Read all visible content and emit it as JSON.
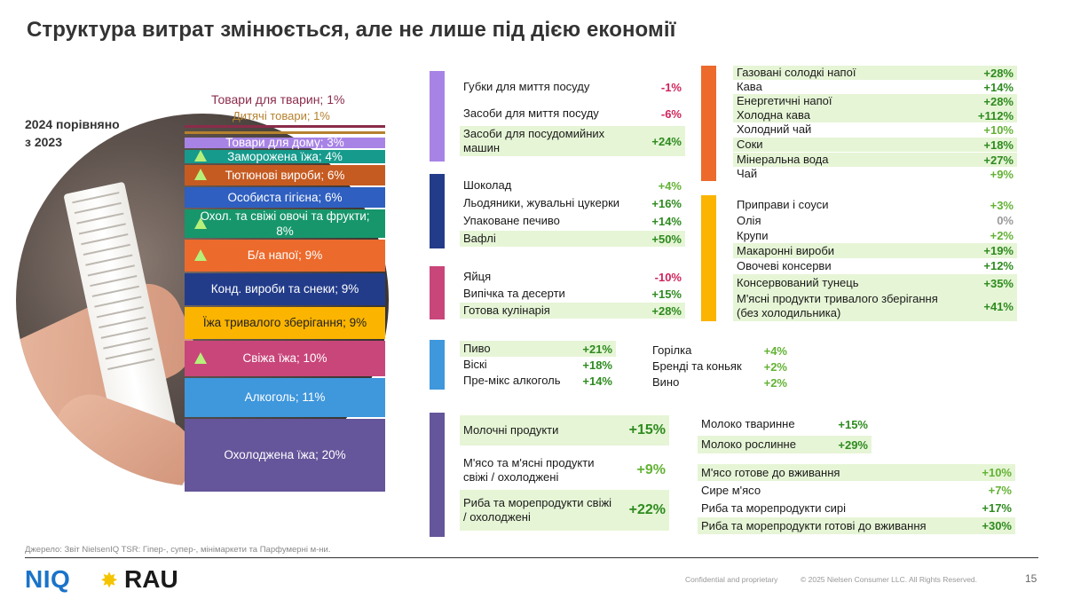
{
  "title": "Структура витрат змінюється, але не лише під дією економії",
  "comparison_note": [
    "2024 порівняно",
    "з 2023"
  ],
  "chart_data": {
    "type": "stacked_bar",
    "title": "Структура витрат змінюється, але не лише під дією економії",
    "unit": "% share of spending",
    "segments": [
      {
        "label": "Товари для тварин; 1%",
        "value": 1,
        "color": "#8b2c4a",
        "trend_up": false
      },
      {
        "label": "Дитячі товари; 1%",
        "value": 1,
        "color": "#b5812e",
        "trend_up": false
      },
      {
        "label": "Товари для дому; 3%",
        "value": 3,
        "color": "#a883e6",
        "trend_up": false
      },
      {
        "label": "Заморожена їжа; 4%",
        "value": 4,
        "color": "#159a8c",
        "trend_up": true
      },
      {
        "label": "Тютюнові вироби; 6%",
        "value": 6,
        "color": "#c65b21",
        "trend_up": true
      },
      {
        "label": "Особиста гігієна; 6%",
        "value": 6,
        "color": "#2f5fc0",
        "trend_up": false
      },
      {
        "label": "Охол. та свіжі овочі та фрукти; 8%",
        "value": 8,
        "color": "#17966b",
        "trend_up": true
      },
      {
        "label": "Б/а напої; 9%",
        "value": 9,
        "color": "#ec6a2c",
        "trend_up": true
      },
      {
        "label": "Конд. вироби та снеки; 9%",
        "value": 9,
        "color": "#233c8a",
        "trend_up": false
      },
      {
        "label": "Їжа тривалого зберігання; 9%",
        "value": 9,
        "color": "#fbb400",
        "trend_up": false
      },
      {
        "label": "Свіжа їжа; 10%",
        "value": 10,
        "color": "#c8467a",
        "trend_up": true
      },
      {
        "label": "Алкоголь; 11%",
        "value": 11,
        "color": "#3f97dc",
        "trend_up": false
      },
      {
        "label": "Охолоджена їжа; 20%",
        "value": 20,
        "color": "#65559a",
        "trend_up": false
      }
    ]
  },
  "groups": {
    "household": {
      "color": "#a883e6",
      "items": [
        {
          "label": "Губки для миття посуду",
          "value": "-1%",
          "tone": "neg",
          "hl": false
        },
        {
          "label": "Засоби для миття посуду",
          "value": "-6%",
          "tone": "neg",
          "hl": false
        },
        {
          "label": "Засоби для посудомийних машин",
          "value": "+24%",
          "tone": "pos-strong",
          "hl": true
        }
      ]
    },
    "confectionery": {
      "color": "#233c8a",
      "items": [
        {
          "label": "Шоколад",
          "value": "+4%",
          "tone": "pos",
          "hl": false
        },
        {
          "label": "Льодяники, жувальні цукерки",
          "value": "+16%",
          "tone": "pos-strong",
          "hl": false
        },
        {
          "label": "Упаковане печиво",
          "value": "+14%",
          "tone": "pos-strong",
          "hl": false
        },
        {
          "label": "Вафлі",
          "value": "+50%",
          "tone": "pos-strong",
          "hl": true
        }
      ]
    },
    "fresh": {
      "color": "#c8467a",
      "items": [
        {
          "label": "Яйця",
          "value": "-10%",
          "tone": "neg",
          "hl": false
        },
        {
          "label": "Випічка та десерти",
          "value": "+15%",
          "tone": "pos-strong",
          "hl": false
        },
        {
          "label": "Готова кулінарія",
          "value": "+28%",
          "tone": "pos-strong",
          "hl": true
        }
      ]
    },
    "alcohol_left": {
      "color": "#3f97dc",
      "items": [
        {
          "label": "Пиво",
          "value": "+21%",
          "tone": "pos-strong",
          "hl": true
        },
        {
          "label": "Віскі",
          "value": "+18%",
          "tone": "pos-strong",
          "hl": false
        },
        {
          "label": "Пре-мікс алкоголь",
          "value": "+14%",
          "tone": "pos-strong",
          "hl": false
        }
      ]
    },
    "alcohol_right": {
      "items": [
        {
          "label": "Горілка",
          "value": "+4%",
          "tone": "pos",
          "hl": false
        },
        {
          "label": "Бренді та коньяк",
          "value": "+2%",
          "tone": "pos",
          "hl": false
        },
        {
          "label": "Вино",
          "value": "+2%",
          "tone": "pos",
          "hl": false
        }
      ]
    },
    "chilled": {
      "color": "#65559a",
      "items": [
        {
          "label": "Молочні продукти",
          "value": "+15%",
          "tone": "pos-strong",
          "hl": true
        },
        {
          "label": "М'ясо та м'ясні продукти свіжі / охолоджені",
          "value": "+9%",
          "tone": "pos",
          "hl": false
        },
        {
          "label": "Риба та морепродукти свіжі / охолоджені",
          "value": "+22%",
          "tone": "pos-strong",
          "hl": true
        }
      ]
    },
    "milk": {
      "items": [
        {
          "label": "Молоко тваринне",
          "value": "+15%",
          "tone": "pos-strong",
          "hl": false
        },
        {
          "label": "Молоко рослинне",
          "value": "+29%",
          "tone": "pos-strong",
          "hl": true
        }
      ]
    },
    "meat_fish": {
      "items": [
        {
          "label": "М'ясо готове до вживання",
          "value": "+10%",
          "tone": "pos",
          "hl": true
        },
        {
          "label": "Сире м'ясо",
          "value": "+7%",
          "tone": "pos",
          "hl": false
        },
        {
          "label": "Риба та морепродукти сирі",
          "value": "+17%",
          "tone": "pos-strong",
          "hl": false
        },
        {
          "label": "Риба та морепродукти готові до вживання",
          "value": "+30%",
          "tone": "pos-strong",
          "hl": true
        }
      ]
    },
    "beverages": {
      "color": "#ec6a2c",
      "items": [
        {
          "label": "Газовані солодкі напої",
          "value": "+28%",
          "tone": "pos-strong",
          "hl": true
        },
        {
          "label": "Кава",
          "value": "+14%",
          "tone": "pos-strong",
          "hl": false
        },
        {
          "label": "Енергетичні напої",
          "value": "+28%",
          "tone": "pos-strong",
          "hl": true
        },
        {
          "label": "Холодна кава",
          "value": "+112%",
          "tone": "pos-strong",
          "hl": true
        },
        {
          "label": "Холодний чай",
          "value": "+10%",
          "tone": "pos",
          "hl": false
        },
        {
          "label": "Соки",
          "value": "+18%",
          "tone": "pos-strong",
          "hl": true
        },
        {
          "label": "Мінеральна вода",
          "value": "+27%",
          "tone": "pos-strong",
          "hl": true
        },
        {
          "label": "Чай",
          "value": "+9%",
          "tone": "pos",
          "hl": false
        }
      ]
    },
    "grocery": {
      "color": "#fbb400",
      "items": [
        {
          "label": "Приправи і соуси",
          "value": "+3%",
          "tone": "pos",
          "hl": false
        },
        {
          "label": "Олія",
          "value": "0%",
          "tone": "zero",
          "hl": false
        },
        {
          "label": "Крупи",
          "value": "+2%",
          "tone": "pos",
          "hl": false
        },
        {
          "label": "Макаронні вироби",
          "value": "+19%",
          "tone": "pos-strong",
          "hl": true
        },
        {
          "label": "Овочеві консерви",
          "value": "+12%",
          "tone": "pos-strong",
          "hl": false
        },
        {
          "label": "Консервований тунець",
          "value": "+35%",
          "tone": "pos-strong",
          "hl": true
        },
        {
          "label": "М'ясні продукти тривалого зберігання (без холодильника)",
          "value": "+41%",
          "tone": "pos-strong",
          "hl": true
        }
      ]
    }
  },
  "footer": {
    "source": "Джерело: Звіт NielsenIQ TSR: Гіпер-, супер-, мінімаркети та Парфумерні м-ни.",
    "logo_niq": "NIQ",
    "logo_rau": "RAU",
    "confidential": "Confidential and proprietary",
    "copyright": "© 2025 Nielsen Consumer LLC. All Rights Reserved.",
    "page": "15"
  }
}
